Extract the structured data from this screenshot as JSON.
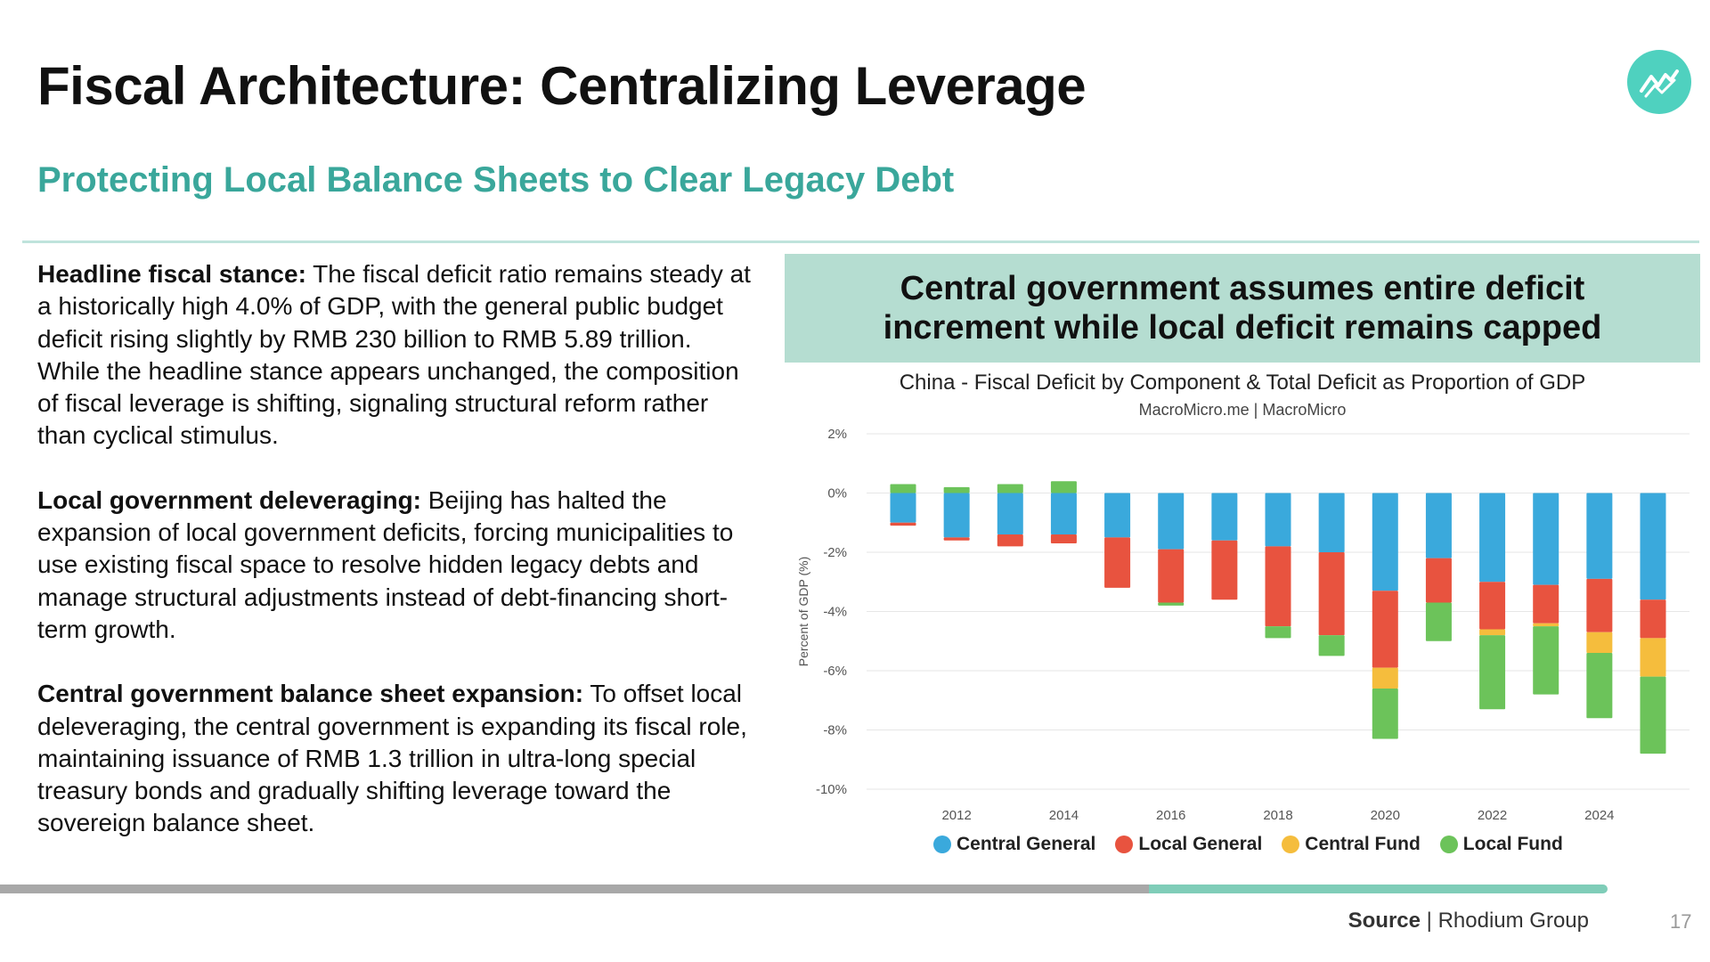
{
  "slide": {
    "title": "Fiscal Architecture: Centralizing Leverage",
    "subtitle": "Protecting Local Balance Sheets to Clear Legacy Debt",
    "page_number": "17"
  },
  "body": {
    "paragraphs": [
      {
        "lead": "Headline fiscal stance:",
        "text": " The fiscal deficit ratio remains steady at a historically high 4.0% of GDP, with the general public budget deficit rising slightly by RMB 230 billion to RMB 5.89 trillion. While the headline stance appears unchanged, the composition of fiscal leverage is shifting, signaling structural reform rather than cyclical stimulus."
      },
      {
        "lead": "Local government deleveraging:",
        "text": " Beijing has halted the expansion of local government deficits, forcing municipalities to use existing fiscal space to resolve hidden legacy debts and manage structural adjustments instead of debt-financing short-term growth."
      },
      {
        "lead": "Central government balance sheet expansion:",
        "text": " To offset local deleveraging, the central government is expanding its fiscal role, maintaining issuance of RMB 1.3 trillion in ultra-long special treasury bonds and gradually shifting leverage toward the sovereign balance sheet."
      }
    ]
  },
  "banner": {
    "text": "Central government assumes entire deficit increment while local deficit remains capped"
  },
  "chart_data": {
    "type": "bar",
    "stacked": true,
    "title": "China - Fiscal Deficit by Component & Total Deficit as Proportion of GDP",
    "subtitle": "MacroMicro.me | MacroMicro",
    "ylabel": "Percent of GDP (%)",
    "xlabel": "",
    "ylim": [
      -10,
      2
    ],
    "yticks": [
      2,
      0,
      -2,
      -4,
      -6,
      -8,
      -10
    ],
    "ytick_labels": [
      "2%",
      "0%",
      "-2%",
      "-4%",
      "-6%",
      "-8%",
      "-10%"
    ],
    "xtick_labels": [
      "2012",
      "2014",
      "2016",
      "2018",
      "2020",
      "2022",
      "2024"
    ],
    "x": [
      2011,
      2012,
      2013,
      2014,
      2015,
      2016,
      2017,
      2018,
      2019,
      2020,
      2021,
      2022,
      2023,
      2024,
      2025
    ],
    "grid": true,
    "legend_position": "bottom",
    "series": [
      {
        "name": "Central General",
        "color": "#3aa9dc",
        "values": [
          -1.0,
          -1.5,
          -1.4,
          -1.4,
          -1.5,
          -1.9,
          -1.6,
          -1.8,
          -2.0,
          -3.3,
          -2.2,
          -3.0,
          -3.1,
          -2.9,
          -3.6
        ]
      },
      {
        "name": "Local General",
        "color": "#e8533f",
        "values": [
          -0.1,
          -0.1,
          -0.4,
          -0.3,
          -1.7,
          -1.8,
          -2.0,
          -2.7,
          -2.8,
          -2.6,
          -1.5,
          -1.6,
          -1.3,
          -1.8,
          -1.3
        ]
      },
      {
        "name": "Central Fund",
        "color": "#f5bd3d",
        "values": [
          0,
          0,
          0,
          0,
          0,
          0,
          0,
          0,
          0,
          -0.7,
          0,
          -0.2,
          -0.1,
          -0.7,
          -1.3
        ]
      },
      {
        "name": "Local Fund",
        "color": "#6cc35a",
        "values": [
          0.3,
          0.2,
          0.3,
          0.4,
          0,
          -0.1,
          0,
          -0.4,
          -0.7,
          -1.7,
          -1.3,
          -2.5,
          -2.3,
          -2.2,
          -2.6
        ]
      }
    ]
  },
  "source": {
    "label": "Source",
    "separator": "|",
    "text": "Rhodium Group"
  },
  "colors": {
    "accent": "#3aa79b",
    "banner": "#b5ddd1",
    "logo": "#4fd1bf"
  },
  "icons": {
    "logo": "trend-chart-icon"
  }
}
